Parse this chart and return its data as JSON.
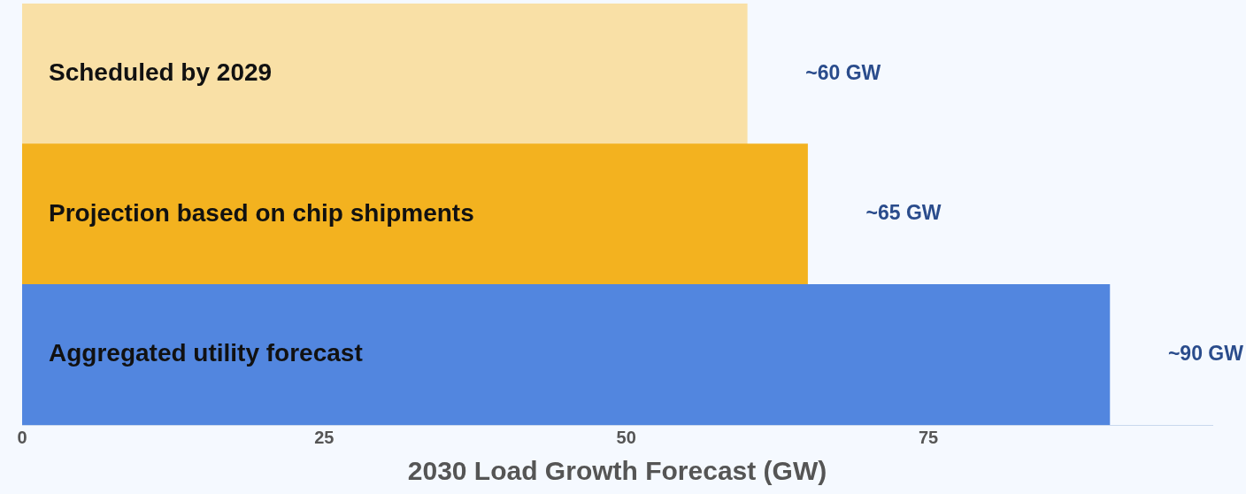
{
  "chart_data": {
    "type": "bar",
    "orientation": "horizontal",
    "xlabel": "2030 Load Growth Forecast (GW)",
    "categories": [
      "Scheduled by 2029",
      "Projection based on chip shipments",
      "Aggregated utility forecast"
    ],
    "values": [
      60,
      65,
      90
    ],
    "colors": [
      "#f9e0a6",
      "#f3b21f",
      "#5286df"
    ],
    "value_labels": [
      "~60 GW",
      "~65 GW",
      "~90 GW"
    ],
    "xlim": [
      0,
      98.5
    ],
    "xticks": [
      0,
      25,
      50,
      75
    ],
    "grid": false,
    "legend": false
  }
}
